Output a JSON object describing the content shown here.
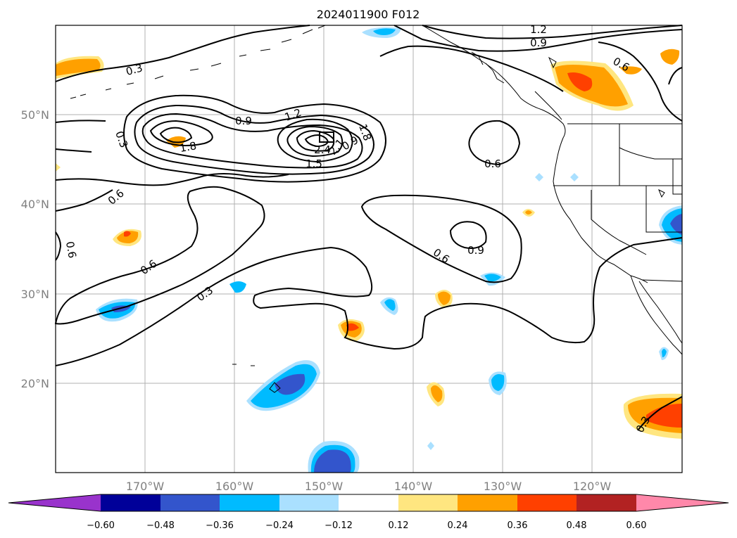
{
  "title": "2024011900 F012",
  "lat_labels": [
    "50°N",
    "40°N",
    "30°N",
    "20°N"
  ],
  "lon_labels": [
    "170°W",
    "160°W",
    "150°W",
    "140°W",
    "130°W",
    "120°W"
  ],
  "contour_labels": [
    "1.2",
    "0.9",
    "0.6",
    "0.3",
    "0.9",
    "1.2",
    "1.8",
    "0.3",
    "1.8",
    "2.4",
    "2.1",
    "1.5",
    "0.6",
    "0.6",
    "0.9",
    "0.6",
    "0.6",
    "0.6",
    "0.3",
    "0.9",
    "0.3"
  ],
  "colorbar": {
    "tick_labels": [
      "−0.60",
      "−0.48",
      "−0.36",
      "−0.24",
      "−0.12",
      "0.12",
      "0.24",
      "0.36",
      "0.48",
      "0.60"
    ],
    "colors": [
      "#9933cc",
      "#000099",
      "#3355cc",
      "#00bbff",
      "#aae0ff",
      "#ffffff",
      "#ffe680",
      "#ffa000",
      "#ff4000",
      "#b22222",
      "#ff88aa"
    ]
  }
}
